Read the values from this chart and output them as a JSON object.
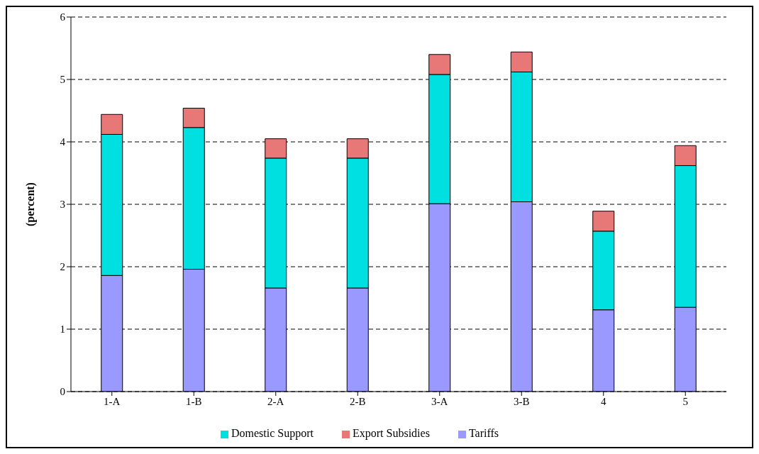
{
  "chart_data": {
    "type": "bar",
    "stacked": true,
    "ylabel": "(percent)",
    "categories": [
      "1-A",
      "1-B",
      "2-A",
      "2-B",
      "3-A",
      "3-B",
      "4",
      "5"
    ],
    "series": [
      {
        "name": "Tariffs",
        "color": "#9999ff",
        "values": [
          1.86,
          1.96,
          1.66,
          1.66,
          3.01,
          3.04,
          1.31,
          1.35
        ]
      },
      {
        "name": "Domestic Support",
        "color": "#00e0e0",
        "values": [
          2.26,
          2.27,
          2.08,
          2.08,
          2.07,
          2.08,
          1.26,
          2.27
        ]
      },
      {
        "name": "Export Subsidies",
        "color": "#e87878",
        "values": [
          0.32,
          0.31,
          0.31,
          0.31,
          0.32,
          0.32,
          0.32,
          0.32
        ]
      }
    ],
    "ylim": [
      0,
      6
    ],
    "yticks": [
      0,
      1,
      2,
      3,
      4,
      5,
      6
    ],
    "grid": "y",
    "legend": "bottom"
  }
}
